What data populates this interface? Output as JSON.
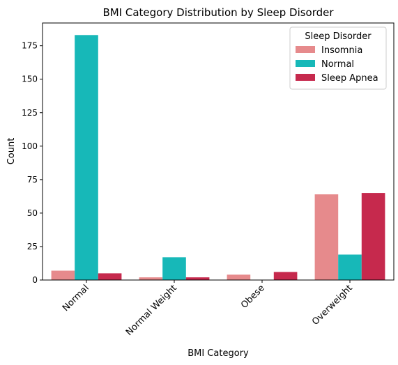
{
  "chart_data": {
    "type": "bar",
    "title": "BMI Category Distribution by Sleep Disorder",
    "xlabel": "BMI Category",
    "ylabel": "Count",
    "categories": [
      "Normal",
      "Normal Weight",
      "Obese",
      "Overweight"
    ],
    "series": [
      {
        "name": "Insomnia",
        "values": [
          7,
          2,
          4,
          64
        ],
        "color": "#e68a8c"
      },
      {
        "name": "Normal",
        "values": [
          183,
          17,
          0,
          19
        ],
        "color": "#17b8b8"
      },
      {
        "name": "Sleep Apnea",
        "values": [
          5,
          2,
          6,
          65
        ],
        "color": "#c6294d"
      }
    ],
    "ylim": [
      0,
      192
    ],
    "yticks": [
      0,
      25,
      50,
      75,
      100,
      125,
      150,
      175
    ],
    "legend": {
      "title": "Sleep Disorder",
      "placement": "top-right"
    },
    "grid": false
  }
}
